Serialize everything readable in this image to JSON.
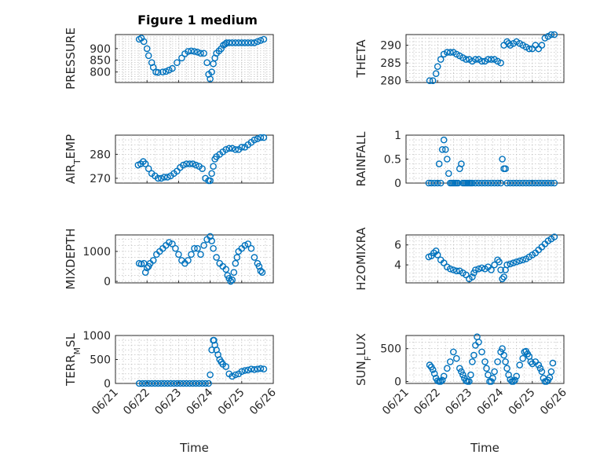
{
  "figure": {
    "title": "Figure 1 medium"
  },
  "chart_data": [
    {
      "type": "scatter",
      "panel": "pressure",
      "col": 0,
      "row": 0,
      "title": "Figure 1 medium",
      "ylabel": "PRESSURE",
      "xlim": [
        0,
        5
      ],
      "ylim": [
        755,
        960
      ],
      "yticks": [
        800,
        850,
        900
      ],
      "show_xticks": false,
      "xlabel": "",
      "x": [
        0.75,
        0.82,
        0.9,
        1,
        1.05,
        1.15,
        1.2,
        1.28,
        1.35,
        1.5,
        1.6,
        1.7,
        1.8,
        1.95,
        2.1,
        2.2,
        2.3,
        2.4,
        2.5,
        2.6,
        2.7,
        2.8,
        2.9,
        2.95,
        3.0,
        3.05,
        3.1,
        3.15,
        3.2,
        3.28,
        3.35,
        3.42,
        3.48,
        3.52,
        3.6,
        3.7,
        3.8,
        3.9,
        4.0,
        4.1,
        4.2,
        4.3,
        4.4,
        4.5,
        4.6,
        4.7
      ],
      "y": [
        940,
        945,
        930,
        900,
        870,
        840,
        820,
        800,
        798,
        800,
        802,
        808,
        815,
        840,
        860,
        878,
        888,
        890,
        888,
        885,
        880,
        880,
        840,
        790,
        770,
        800,
        835,
        860,
        880,
        890,
        900,
        915,
        920,
        925,
        925,
        925,
        925,
        925,
        925,
        925,
        925,
        925,
        925,
        930,
        935,
        940
      ]
    },
    {
      "type": "scatter",
      "panel": "theta",
      "col": 1,
      "row": 0,
      "ylabel": "THETA",
      "xlim": [
        0,
        5
      ],
      "ylim": [
        279.5,
        293
      ],
      "yticks": [
        280,
        285,
        290
      ],
      "show_xticks": false,
      "xlabel": "",
      "x": [
        0.75,
        0.85,
        0.95,
        1.0,
        1.1,
        1.2,
        1.3,
        1.4,
        1.5,
        1.6,
        1.7,
        1.8,
        1.9,
        2.0,
        2.1,
        2.2,
        2.3,
        2.4,
        2.5,
        2.6,
        2.7,
        2.8,
        2.9,
        3.0,
        3.1,
        3.2,
        3.25,
        3.3,
        3.4,
        3.5,
        3.6,
        3.7,
        3.8,
        3.9,
        4.0,
        4.1,
        4.2,
        4.3,
        4.4,
        4.5,
        4.6,
        4.7
      ],
      "y": [
        280,
        280,
        282,
        284,
        286,
        287.5,
        288,
        288,
        288,
        287.5,
        287,
        286.5,
        286,
        286,
        285.5,
        286,
        286,
        285.5,
        285.5,
        286,
        286,
        286,
        285.5,
        285,
        290,
        291,
        290.5,
        290,
        290.5,
        291,
        290.5,
        290,
        289.5,
        289,
        289,
        290,
        289,
        290,
        292,
        292.5,
        293,
        293
      ]
    },
    {
      "type": "scatter",
      "panel": "air-temp",
      "col": 0,
      "row": 1,
      "ylabel": "AIR_TEMP",
      "xlim": [
        0,
        5
      ],
      "ylim": [
        268,
        288
      ],
      "yticks": [
        270,
        280
      ],
      "show_xticks": false,
      "xlabel": "",
      "x": [
        0.72,
        0.8,
        0.88,
        0.95,
        1.05,
        1.15,
        1.25,
        1.35,
        1.45,
        1.55,
        1.65,
        1.75,
        1.85,
        1.95,
        2.05,
        2.15,
        2.25,
        2.35,
        2.45,
        2.55,
        2.65,
        2.75,
        2.85,
        2.95,
        3.0,
        3.05,
        3.1,
        3.15,
        3.2,
        3.3,
        3.4,
        3.5,
        3.6,
        3.7,
        3.8,
        3.9,
        4.0,
        4.1,
        4.2,
        4.3,
        4.4,
        4.5,
        4.6,
        4.7
      ],
      "y": [
        275.5,
        276,
        277,
        276,
        274,
        272,
        271,
        270,
        270,
        270.5,
        270.5,
        271,
        272,
        273,
        274.5,
        275.5,
        276,
        276,
        276,
        275.5,
        275,
        274,
        270,
        269,
        269,
        272,
        275,
        278,
        279,
        280,
        281,
        282,
        282.5,
        282.5,
        282,
        282,
        283,
        283,
        284,
        285,
        286,
        286.5,
        287,
        287
      ]
    },
    {
      "type": "scatter",
      "panel": "rainfall",
      "col": 1,
      "row": 1,
      "ylabel": "RAINFALL",
      "xlim": [
        0,
        5
      ],
      "ylim": [
        0,
        1
      ],
      "yticks": [
        0,
        0.5,
        1
      ],
      "show_xticks": false,
      "xlabel": "",
      "x": [
        0.72,
        0.8,
        0.9,
        1.0,
        1.05,
        1.1,
        1.15,
        1.2,
        1.25,
        1.3,
        1.35,
        1.4,
        1.45,
        1.5,
        1.55,
        1.6,
        1.65,
        1.7,
        1.75,
        1.8,
        1.85,
        1.9,
        1.95,
        2.0,
        2.05,
        2.1,
        2.2,
        2.3,
        2.4,
        2.5,
        2.6,
        2.7,
        2.8,
        2.9,
        3.0,
        3.05,
        3.1,
        3.15,
        3.2,
        3.3,
        3.4,
        3.5,
        3.6,
        3.7,
        3.8,
        3.9,
        4.0,
        4.1,
        4.2,
        4.3,
        4.4,
        4.5,
        4.6,
        4.7
      ],
      "y": [
        0,
        0,
        0,
        0,
        0.4,
        0,
        0.7,
        0.9,
        0.7,
        0.5,
        0.2,
        0,
        0,
        0,
        0,
        0,
        0,
        0.3,
        0.4,
        0,
        0,
        0,
        0,
        0,
        0,
        0,
        0,
        0,
        0,
        0,
        0,
        0,
        0,
        0,
        0,
        0.5,
        0.3,
        0.3,
        0,
        0,
        0,
        0,
        0,
        0,
        0,
        0,
        0,
        0,
        0,
        0,
        0,
        0,
        0,
        0
      ]
    },
    {
      "type": "scatter",
      "panel": "mixdepth",
      "col": 0,
      "row": 2,
      "ylabel": "MIXDEPTH",
      "xlim": [
        0,
        5
      ],
      "ylim": [
        -50,
        1550
      ],
      "yticks": [
        0,
        1000
      ],
      "show_xticks": false,
      "xlabel": "",
      "x": [
        0.75,
        0.82,
        0.9,
        0.95,
        1.0,
        1.05,
        1.1,
        1.2,
        1.3,
        1.4,
        1.5,
        1.6,
        1.7,
        1.8,
        1.9,
        2.0,
        2.1,
        2.2,
        2.3,
        2.4,
        2.5,
        2.6,
        2.7,
        2.8,
        2.9,
        3.0,
        3.05,
        3.1,
        3.2,
        3.3,
        3.4,
        3.5,
        3.55,
        3.6,
        3.65,
        3.7,
        3.75,
        3.8,
        3.85,
        3.9,
        4.0,
        4.1,
        4.2,
        4.3,
        4.4,
        4.5,
        4.55,
        4.6,
        4.65
      ],
      "y": [
        600,
        580,
        600,
        300,
        450,
        500,
        600,
        700,
        900,
        1000,
        1100,
        1200,
        1300,
        1250,
        1100,
        900,
        700,
        600,
        700,
        900,
        1100,
        1100,
        900,
        1200,
        1400,
        1500,
        1350,
        1100,
        800,
        600,
        500,
        400,
        200,
        100,
        0,
        50,
        300,
        600,
        800,
        1000,
        1100,
        1200,
        1250,
        1100,
        800,
        600,
        500,
        350,
        300
      ]
    },
    {
      "type": "scatter",
      "panel": "h2omixra",
      "col": 1,
      "row": 2,
      "ylabel": "H2OMIXRA",
      "xlim": [
        0,
        5
      ],
      "ylim": [
        2.2,
        7
      ],
      "yticks": [
        4,
        6
      ],
      "show_xticks": false,
      "xlabel": "",
      "x": [
        0.72,
        0.8,
        0.88,
        0.95,
        1.0,
        1.1,
        1.2,
        1.3,
        1.4,
        1.5,
        1.6,
        1.7,
        1.8,
        1.9,
        2.0,
        2.1,
        2.15,
        2.2,
        2.3,
        2.4,
        2.5,
        2.6,
        2.7,
        2.8,
        2.9,
        2.95,
        3.0,
        3.05,
        3.1,
        3.15,
        3.2,
        3.3,
        3.4,
        3.5,
        3.6,
        3.7,
        3.8,
        3.9,
        4.0,
        4.1,
        4.2,
        4.3,
        4.4,
        4.5,
        4.6,
        4.7
      ],
      "y": [
        4.8,
        4.9,
        5.2,
        5.4,
        5.0,
        4.5,
        4.2,
        3.8,
        3.6,
        3.5,
        3.4,
        3.4,
        3.2,
        3.0,
        2.6,
        2.8,
        3.2,
        3.5,
        3.6,
        3.7,
        3.6,
        3.8,
        3.5,
        4.0,
        4.5,
        4.3,
        3.5,
        2.6,
        2.8,
        3.5,
        4.0,
        4.1,
        4.2,
        4.3,
        4.4,
        4.5,
        4.6,
        4.8,
        5.0,
        5.2,
        5.5,
        5.8,
        6.1,
        6.4,
        6.6,
        6.8
      ]
    },
    {
      "type": "scatter",
      "panel": "terrmsl",
      "col": 0,
      "row": 3,
      "ylabel": "TERR_MSL",
      "xlim": [
        0,
        5
      ],
      "ylim": [
        0,
        1000
      ],
      "yticks": [
        0,
        500,
        1000
      ],
      "show_xticks": true,
      "xticklabels": [
        "06/21",
        "06/22",
        "06/23",
        "06/24",
        "06/25",
        "06/26"
      ],
      "xlabel": "Time",
      "x": [
        0.75,
        0.85,
        0.95,
        1.05,
        1.15,
        1.25,
        1.35,
        1.45,
        1.55,
        1.65,
        1.75,
        1.85,
        1.95,
        2.05,
        2.15,
        2.25,
        2.35,
        2.45,
        2.55,
        2.65,
        2.75,
        2.85,
        2.95,
        3.0,
        3.05,
        3.1,
        3.12,
        3.15,
        3.2,
        3.25,
        3.3,
        3.35,
        3.4,
        3.5,
        3.6,
        3.7,
        3.8,
        3.9,
        4.0,
        4.1,
        4.2,
        4.3,
        4.4,
        4.5,
        4.6,
        4.7
      ],
      "y": [
        0,
        0,
        0,
        0,
        0,
        0,
        0,
        0,
        0,
        0,
        0,
        0,
        0,
        0,
        0,
        0,
        0,
        0,
        0,
        0,
        0,
        0,
        0,
        180,
        700,
        900,
        900,
        800,
        700,
        600,
        500,
        450,
        400,
        350,
        200,
        150,
        180,
        200,
        250,
        270,
        280,
        300,
        290,
        300,
        310,
        300
      ]
    },
    {
      "type": "scatter",
      "panel": "sunflux",
      "col": 1,
      "row": 3,
      "ylabel": "SUN_FLUX",
      "xlim": [
        0,
        5
      ],
      "ylim": [
        -30,
        700
      ],
      "yticks": [
        0,
        500
      ],
      "show_xticks": true,
      "xticklabels": [
        "06/21",
        "06/22",
        "06/23",
        "06/24",
        "06/25",
        "06/26"
      ],
      "xlabel": "Time",
      "x": [
        0.75,
        0.8,
        0.85,
        0.9,
        0.95,
        1.0,
        1.05,
        1.1,
        1.15,
        1.2,
        1.3,
        1.4,
        1.5,
        1.6,
        1.7,
        1.75,
        1.8,
        1.85,
        1.9,
        1.95,
        2.0,
        2.05,
        2.1,
        2.15,
        2.2,
        2.25,
        2.3,
        2.4,
        2.5,
        2.55,
        2.6,
        2.65,
        2.7,
        2.75,
        2.8,
        2.9,
        3.0,
        3.05,
        3.1,
        3.15,
        3.2,
        3.25,
        3.3,
        3.35,
        3.4,
        3.45,
        3.5,
        3.6,
        3.7,
        3.75,
        3.8,
        3.85,
        3.9,
        3.95,
        4.0,
        4.1,
        4.2,
        4.25,
        4.3,
        4.35,
        4.4,
        4.45,
        4.5,
        4.55,
        4.6,
        4.65
      ],
      "y": [
        250,
        220,
        180,
        120,
        50,
        10,
        0,
        0,
        20,
        80,
        200,
        300,
        450,
        350,
        200,
        150,
        100,
        50,
        10,
        0,
        0,
        100,
        300,
        400,
        550,
        680,
        600,
        450,
        300,
        200,
        100,
        0,
        0,
        50,
        150,
        300,
        450,
        500,
        400,
        300,
        200,
        100,
        30,
        0,
        0,
        20,
        80,
        250,
        350,
        450,
        460,
        420,
        380,
        300,
        270,
        300,
        250,
        200,
        150,
        50,
        0,
        0,
        20,
        60,
        150,
        280
      ]
    }
  ]
}
